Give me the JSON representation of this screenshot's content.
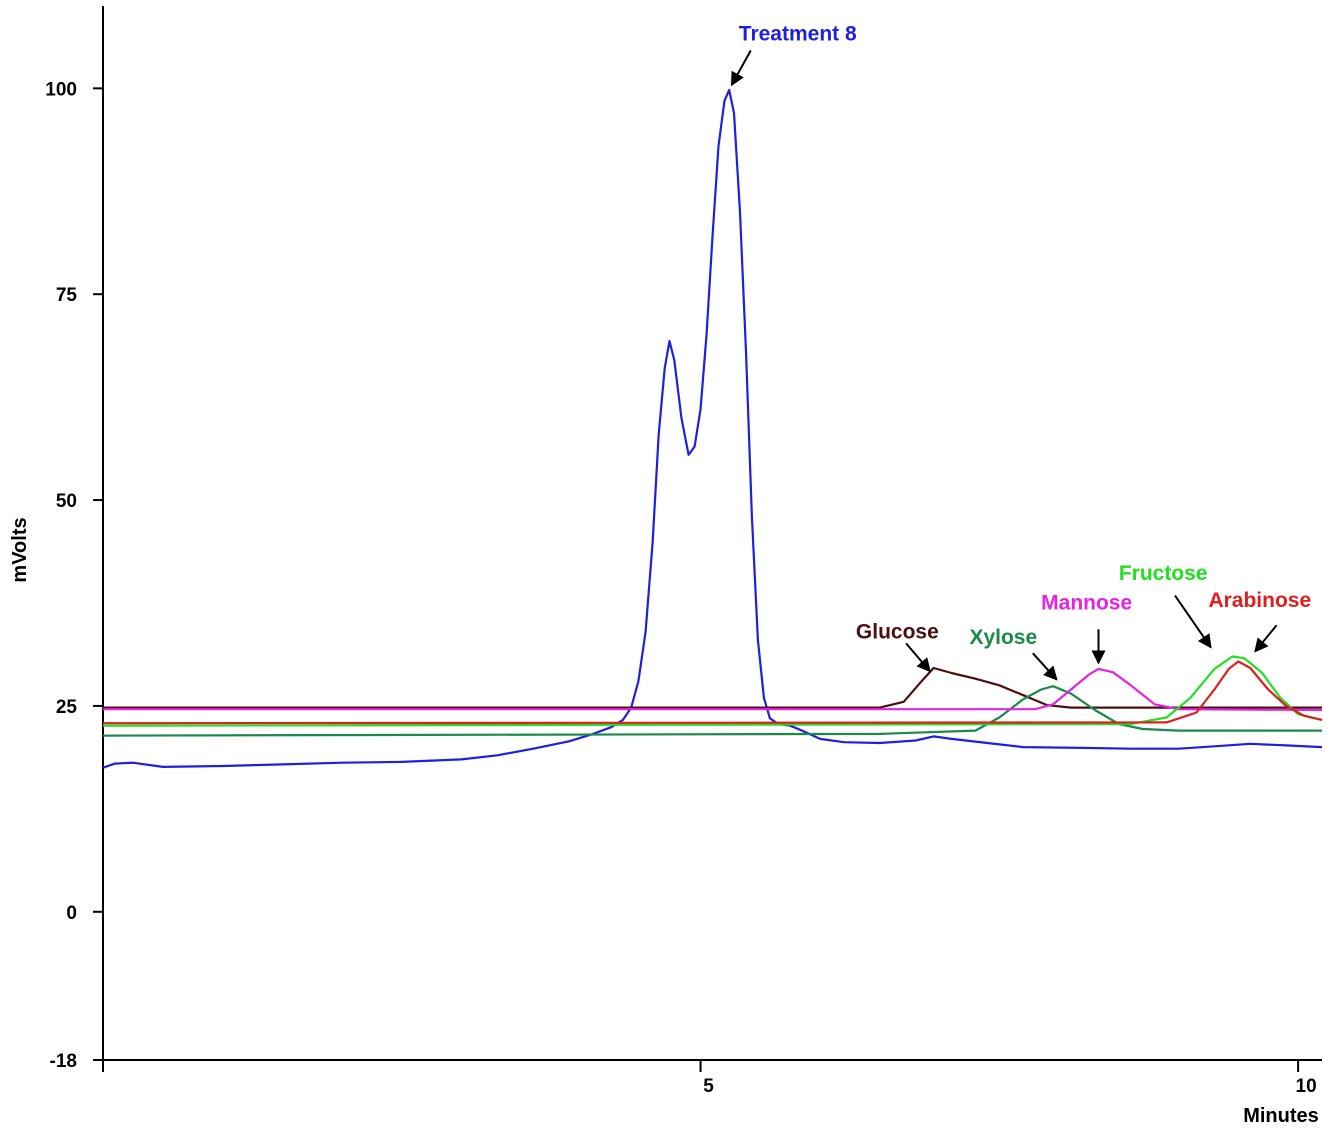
{
  "chart_data": {
    "type": "line",
    "title": "",
    "xlabel": "Minutes",
    "ylabel": "mVolts",
    "xlim": [
      0,
      10.2
    ],
    "ylim": [
      -18,
      110
    ],
    "x_ticks": [
      5,
      10
    ],
    "y_ticks": [
      -18,
      0,
      25,
      50,
      75,
      100
    ],
    "grid": false,
    "legend": "none",
    "series": [
      {
        "name": "Treatment 8",
        "color": "#1f1fe0",
        "points": [
          [
            0,
            17.5
          ],
          [
            0.1,
            18
          ],
          [
            0.25,
            18.1
          ],
          [
            0.5,
            17.6
          ],
          [
            1,
            17.7
          ],
          [
            1.5,
            17.9
          ],
          [
            2,
            18.1
          ],
          [
            2.5,
            18.2
          ],
          [
            3,
            18.5
          ],
          [
            3.3,
            19
          ],
          [
            3.6,
            19.8
          ],
          [
            3.9,
            20.7
          ],
          [
            4.1,
            21.6
          ],
          [
            4.25,
            22.4
          ],
          [
            4.35,
            23.3
          ],
          [
            4.42,
            24.8
          ],
          [
            4.48,
            28
          ],
          [
            4.54,
            34
          ],
          [
            4.6,
            45
          ],
          [
            4.65,
            58
          ],
          [
            4.7,
            66
          ],
          [
            4.74,
            69.3
          ],
          [
            4.78,
            67
          ],
          [
            4.84,
            60
          ],
          [
            4.9,
            55.5
          ],
          [
            4.95,
            56.5
          ],
          [
            5.0,
            61
          ],
          [
            5.05,
            70
          ],
          [
            5.1,
            82
          ],
          [
            5.15,
            93
          ],
          [
            5.2,
            98.5
          ],
          [
            5.24,
            99.8
          ],
          [
            5.28,
            97
          ],
          [
            5.33,
            85
          ],
          [
            5.38,
            68
          ],
          [
            5.43,
            48
          ],
          [
            5.48,
            33
          ],
          [
            5.53,
            26
          ],
          [
            5.58,
            23.5
          ],
          [
            5.65,
            22.8
          ],
          [
            5.75,
            22.6
          ],
          [
            5.85,
            22
          ],
          [
            6,
            21
          ],
          [
            6.2,
            20.6
          ],
          [
            6.5,
            20.5
          ],
          [
            6.8,
            20.8
          ],
          [
            6.95,
            21.3
          ],
          [
            7.1,
            21
          ],
          [
            7.4,
            20.5
          ],
          [
            7.7,
            20
          ],
          [
            8.2,
            19.9
          ],
          [
            8.6,
            19.8
          ],
          [
            9,
            19.8
          ],
          [
            9.3,
            20.1
          ],
          [
            9.6,
            20.4
          ],
          [
            9.9,
            20.2
          ],
          [
            10.2,
            20
          ]
        ]
      },
      {
        "name": "Glucose",
        "color": "#4a1010",
        "points": [
          [
            0,
            24.8
          ],
          [
            6,
            24.8
          ],
          [
            6.5,
            24.8
          ],
          [
            6.7,
            25.5
          ],
          [
            6.85,
            28
          ],
          [
            6.95,
            29.6
          ],
          [
            7.1,
            29
          ],
          [
            7.3,
            28.3
          ],
          [
            7.5,
            27.5
          ],
          [
            7.7,
            26.3
          ],
          [
            7.9,
            25.1
          ],
          [
            8.1,
            24.8
          ],
          [
            10.2,
            24.8
          ]
        ]
      },
      {
        "name": "Xylose",
        "color": "#1a8a4a",
        "points": [
          [
            0,
            21.4
          ],
          [
            6.5,
            21.6
          ],
          [
            7.3,
            22
          ],
          [
            7.5,
            23.6
          ],
          [
            7.7,
            25.8
          ],
          [
            7.85,
            27
          ],
          [
            7.95,
            27.4
          ],
          [
            8.1,
            26.5
          ],
          [
            8.3,
            24.5
          ],
          [
            8.5,
            22.8
          ],
          [
            8.7,
            22.2
          ],
          [
            9,
            22
          ],
          [
            10.2,
            22
          ]
        ]
      },
      {
        "name": "Mannose",
        "color": "#e622e6",
        "points": [
          [
            0,
            24.6
          ],
          [
            7.8,
            24.6
          ],
          [
            7.95,
            25.2
          ],
          [
            8.1,
            27
          ],
          [
            8.25,
            28.8
          ],
          [
            8.33,
            29.5
          ],
          [
            8.45,
            29.1
          ],
          [
            8.6,
            27.5
          ],
          [
            8.8,
            25.2
          ],
          [
            9,
            24.6
          ],
          [
            10.2,
            24.5
          ]
        ]
      },
      {
        "name": "Fructose",
        "color": "#20e020",
        "points": [
          [
            0,
            22.6
          ],
          [
            8.6,
            22.8
          ],
          [
            8.9,
            23.6
          ],
          [
            9.1,
            26
          ],
          [
            9.3,
            29.5
          ],
          [
            9.45,
            31
          ],
          [
            9.55,
            30.8
          ],
          [
            9.7,
            29
          ],
          [
            9.85,
            26
          ],
          [
            10,
            24
          ],
          [
            10.2,
            23.3
          ]
        ]
      },
      {
        "name": "Arabinose",
        "color": "#e01e1e",
        "points": [
          [
            0,
            22.9
          ],
          [
            8.9,
            23
          ],
          [
            9.15,
            24.2
          ],
          [
            9.3,
            27
          ],
          [
            9.42,
            29.5
          ],
          [
            9.5,
            30.4
          ],
          [
            9.6,
            29.6
          ],
          [
            9.75,
            27
          ],
          [
            9.9,
            25
          ],
          [
            10.05,
            23.8
          ],
          [
            10.2,
            23.3
          ]
        ]
      }
    ],
    "annotations": [
      {
        "label": "Treatment 8",
        "color": "#1f1fe0",
        "text_at": [
          5.32,
          105.8
        ],
        "arrow_from": [
          5.42,
          104.6
        ],
        "arrow_to": [
          5.26,
          100.4
        ]
      },
      {
        "label": "Glucose",
        "color": "#4a1010",
        "text_at": [
          6.3,
          33.2
        ],
        "arrow_from": [
          6.72,
          32.6
        ],
        "arrow_to": [
          6.92,
          29.2
        ]
      },
      {
        "label": "Xylose",
        "color": "#1a8a4a",
        "text_at": [
          7.25,
          32.5
        ],
        "arrow_from": [
          7.78,
          31.4
        ],
        "arrow_to": [
          7.98,
          28.2
        ]
      },
      {
        "label": "Mannose",
        "color": "#e622e6",
        "text_at": [
          7.85,
          36.7
        ],
        "arrow_from": [
          8.33,
          34.3
        ],
        "arrow_to": [
          8.33,
          30.2
        ]
      },
      {
        "label": "Fructose",
        "color": "#20e020",
        "text_at": [
          8.5,
          40.3
        ],
        "arrow_from": [
          8.97,
          38.4
        ],
        "arrow_to": [
          9.27,
          32.1
        ]
      },
      {
        "label": "Arabinose",
        "color": "#e01e1e",
        "text_at": [
          9.25,
          37
        ],
        "arrow_from": [
          9.82,
          34.8
        ],
        "arrow_to": [
          9.64,
          31.6
        ]
      }
    ]
  }
}
